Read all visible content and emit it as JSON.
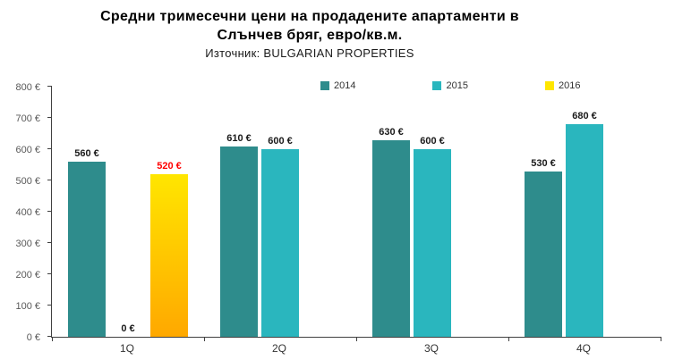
{
  "header": {
    "title_line1": "Средни тримесечни цени на продадените апартаменти в",
    "title_line2": "Слънчев бряг, евро/кв.м.",
    "subtitle": "Източник: BULGARIAN PROPERTIES"
  },
  "chart_data": {
    "type": "bar",
    "title": "Средни тримесечни цени на продадените апартаменти в Слънчев бряг, евро/кв.м.",
    "subtitle": "Източник: BULGARIAN PROPERTIES",
    "categories": [
      "1Q",
      "2Q",
      "3Q",
      "4Q"
    ],
    "series": [
      {
        "name": "2014",
        "color": "#2e8c8c",
        "label_color": "#1a1a1a",
        "values": [
          560,
          610,
          630,
          530
        ]
      },
      {
        "name": "2015",
        "color": "#2ab6be",
        "label_color": "#1a1a1a",
        "values": [
          0,
          600,
          600,
          680
        ]
      },
      {
        "name": "2016",
        "color": "#ffe600",
        "color_bottom": "#ffa800",
        "label_color": "#ff0000",
        "values": [
          520,
          null,
          null,
          null
        ]
      }
    ],
    "ylim": [
      0,
      800
    ],
    "ytick_step": 100,
    "value_suffix": " €",
    "legend_position": "top",
    "grid": false
  }
}
